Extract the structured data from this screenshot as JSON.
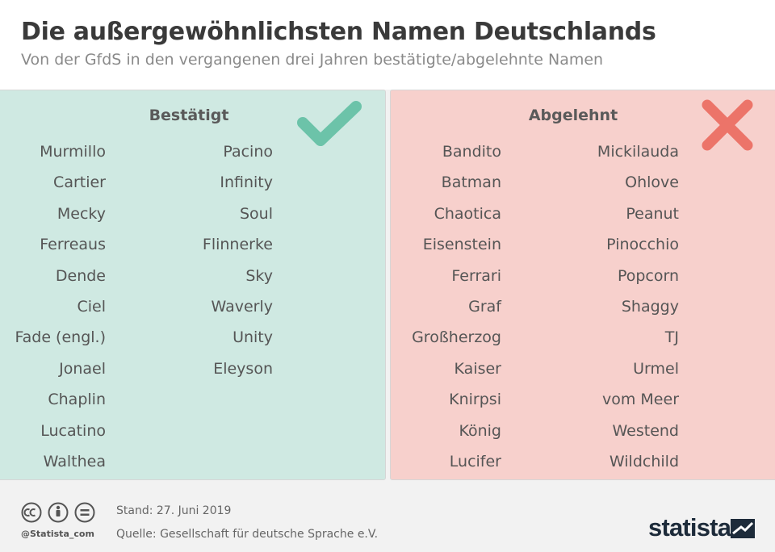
{
  "header": {
    "title": "Die außergewöhnlichsten Namen Deutschlands",
    "subtitle": "Von der GfdS in den vergangenen drei Jahren bestätigte/abgelehnte Namen"
  },
  "approved": {
    "label": "Bestätigt",
    "accent_color": "#6cc3a9",
    "icon": "checkmark-icon",
    "column1": [
      "Murmillo",
      "Cartier",
      "Mecky",
      "Ferreaus",
      "Dende",
      "Ciel",
      "Fade (engl.)",
      "Jonael",
      "Chaplin",
      "Lucatino",
      "Walthea"
    ],
    "column2": [
      "Pacino",
      "Infinity",
      "Soul",
      "Flinnerke",
      "Sky",
      "Waverly",
      "Unity",
      "Eleyson"
    ]
  },
  "rejected": {
    "label": "Abgelehnt",
    "accent_color": "#ec7469",
    "icon": "cross-icon",
    "column1": [
      "Bandito",
      "Batman",
      "Chaotica",
      "Eisenstein",
      "Ferrari",
      "Graf",
      "Großherzog",
      "Kaiser",
      "Knirpsi",
      "König",
      "Lucifer"
    ],
    "column2": [
      "Mickilauda",
      "Ohlove",
      "Peanut",
      "Pinocchio",
      "Popcorn",
      "Shaggy",
      "TJ",
      "Urmel",
      "vom Meer",
      "Westend",
      "Wildchild"
    ]
  },
  "footer": {
    "handle": "@Statista_com",
    "stand": "Stand: 27. Juni 2019",
    "source": "Quelle: Gesellschaft für deutsche Sprache e.V.",
    "brand": "statista"
  }
}
